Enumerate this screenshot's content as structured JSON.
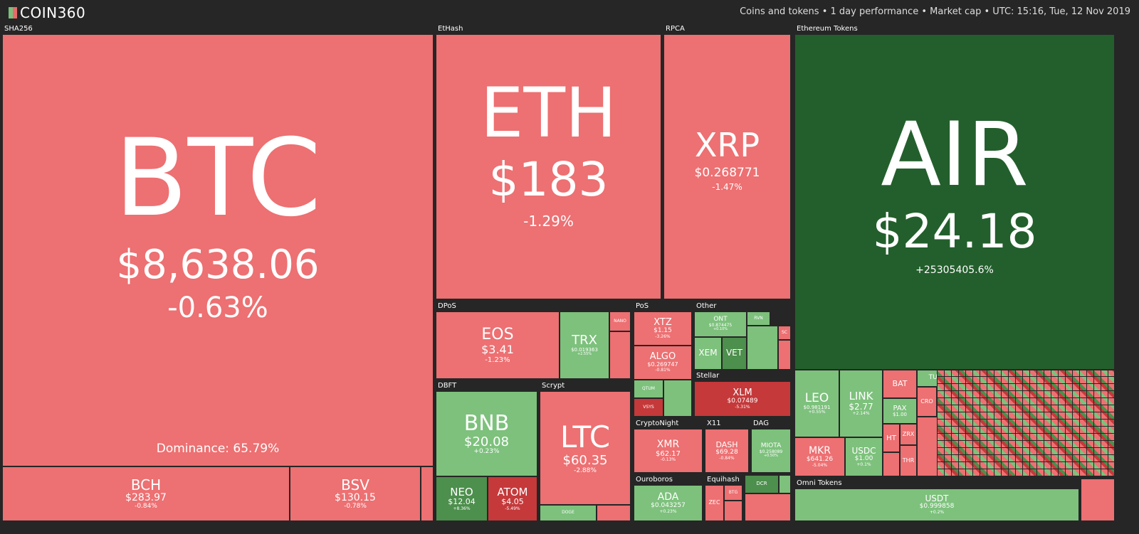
{
  "header": {
    "logo": "COIN360",
    "info": "Coins and tokens • 1 day performance • Market cap • UTC: 15:16, Tue, 12 Nov 2019"
  },
  "colors": {
    "red": "#ed7072",
    "green": "#7dc17c",
    "dark_green": "#235f2c",
    "dark_red": "#c5393a",
    "background": "#262626"
  },
  "sections": {
    "sha256": "SHA256",
    "ethash": "EtHash",
    "rpca": "RPCA",
    "ethereum_tokens": "Ethereum Tokens",
    "dpos": "DPoS",
    "pos": "PoS",
    "other": "Other",
    "stellar": "Stellar",
    "dbft": "DBFT",
    "scrypt": "Scrypt",
    "cryptonight": "CryptoNight",
    "x11": "X11",
    "dag": "DAG",
    "ouroboros": "Ouroboros",
    "equihash": "Equihash",
    "omni_tokens": "Omni Tokens"
  },
  "tiles": {
    "btc": {
      "symbol": "BTC",
      "price": "$8,638.06",
      "change": "-0.63%",
      "dominance": "Dominance: 65.79%"
    },
    "eth": {
      "symbol": "ETH",
      "price": "$183",
      "change": "-1.29%"
    },
    "xrp": {
      "symbol": "XRP",
      "price": "$0.268771",
      "change": "-1.47%"
    },
    "air": {
      "symbol": "AIR",
      "price": "$24.18",
      "change": "+25305405.6%"
    },
    "bch": {
      "symbol": "BCH",
      "price": "$283.97",
      "change": "-0.84%"
    },
    "bsv": {
      "symbol": "BSV",
      "price": "$130.15",
      "change": "-0.78%"
    },
    "eos": {
      "symbol": "EOS",
      "price": "$3.41",
      "change": "-1.23%"
    },
    "trx": {
      "symbol": "TRX",
      "price": "$0.019363",
      "change": "+2.55%"
    },
    "xtz": {
      "symbol": "XTZ",
      "price": "$1.15",
      "change": "-3.26%"
    },
    "algo": {
      "symbol": "ALGO",
      "price": "$0.269747",
      "change": "-0.81%"
    },
    "ont": {
      "symbol": "ONT",
      "price": "$0.874475",
      "change": "+0.10%"
    },
    "xem": {
      "symbol": "XEM"
    },
    "vet": {
      "symbol": "VET"
    },
    "xlm": {
      "symbol": "XLM",
      "price": "$0.07489",
      "change": "-5.31%"
    },
    "bnb": {
      "symbol": "BNB",
      "price": "$20.08",
      "change": "+0.23%"
    },
    "neo": {
      "symbol": "NEO",
      "price": "$12.04",
      "change": "+8.36%"
    },
    "atom": {
      "symbol": "ATOM",
      "price": "$4.05",
      "change": "-5.49%"
    },
    "ltc": {
      "symbol": "LTC",
      "price": "$60.35",
      "change": "-2.88%"
    },
    "doge": {
      "symbol": "DOGE"
    },
    "xmr": {
      "symbol": "XMR",
      "price": "$62.17",
      "change": "-0.13%"
    },
    "dash": {
      "symbol": "DASH",
      "price": "$69.28",
      "change": "-0.84%"
    },
    "miota": {
      "symbol": "MIOTA",
      "price": "$0.258089",
      "change": "+0.50%"
    },
    "ada": {
      "symbol": "ADA",
      "price": "$0.043257",
      "change": "+0.23%"
    },
    "zec": {
      "symbol": "ZEC"
    },
    "btg": {
      "symbol": "BTG"
    },
    "dcr": {
      "symbol": "DCR"
    },
    "leo": {
      "symbol": "LEO",
      "price": "$0.981191",
      "change": "+0.55%"
    },
    "link": {
      "symbol": "LINK",
      "price": "$2.77",
      "change": "+2.14%"
    },
    "bat": {
      "symbol": "BAT"
    },
    "tusd": {
      "symbol": "TUSD"
    },
    "pax": {
      "symbol": "PAX",
      "price": "$1.00"
    },
    "cro": {
      "symbol": "CRO"
    },
    "ht": {
      "symbol": "HT"
    },
    "zrx": {
      "symbol": "ZRX"
    },
    "mkr": {
      "symbol": "MKR",
      "price": "$641.26",
      "change": "-5.04%"
    },
    "usdc": {
      "symbol": "USDC",
      "price": "$1.00",
      "change": "+0.1%"
    },
    "thr": {
      "symbol": "THR"
    },
    "usdt": {
      "symbol": "USDT",
      "price": "$0.999858",
      "change": "+0.2%"
    },
    "nano": {
      "symbol": "NANO"
    },
    "qtum": {
      "symbol": "QTUM"
    },
    "vsys": {
      "symbol": "VSYS"
    },
    "rvn": {
      "symbol": "RVN"
    },
    "sc": {
      "symbol": "SC"
    }
  }
}
